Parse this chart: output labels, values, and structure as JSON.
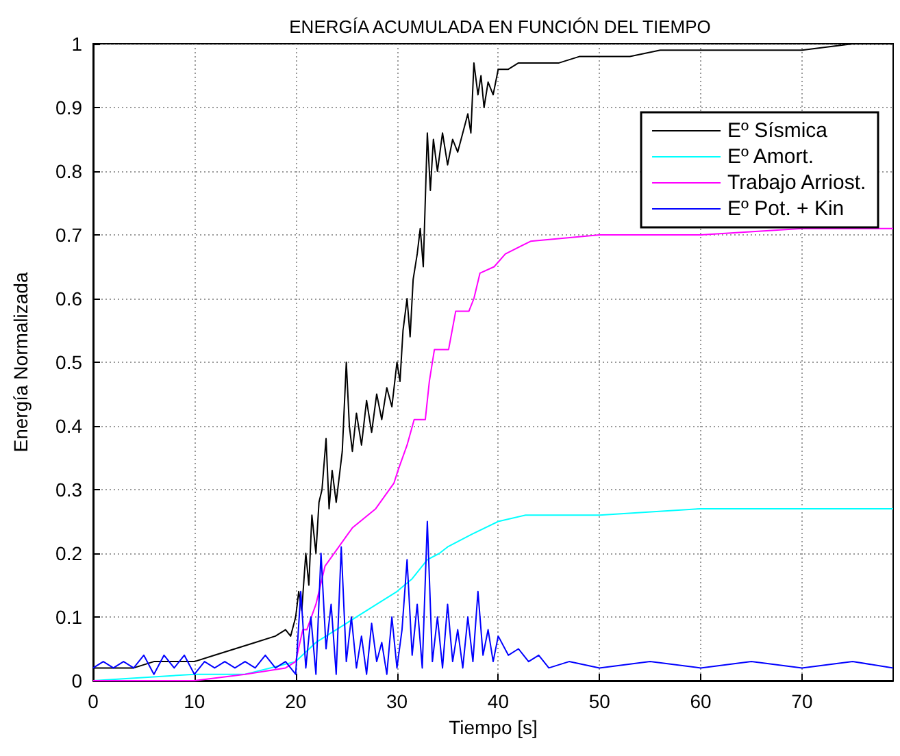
{
  "chart_data": {
    "type": "line",
    "title": "ENERGÍA ACUMULADA EN FUNCIÓN DEL TIEMPO",
    "xlabel": "Tiempo [s]",
    "ylabel": "Energía Normalizada",
    "xlim": [
      0,
      79
    ],
    "xticks": [
      0,
      10,
      20,
      30,
      40,
      50,
      60,
      70
    ],
    "ylim": [
      0,
      1
    ],
    "yticks": [
      0,
      0.1,
      0.2,
      0.3,
      0.4,
      0.5,
      0.6,
      0.7,
      0.8,
      0.9,
      1
    ],
    "grid": true,
    "legend": "top right",
    "marker": "none",
    "line_style": "solid",
    "series": [
      {
        "name": "Eº Sísmica",
        "color": "#000000",
        "x": [
          0,
          2,
          4,
          6,
          8,
          10,
          12,
          14,
          16,
          18,
          19,
          19.5,
          20,
          20.3,
          20.6,
          21,
          21.3,
          21.6,
          22,
          22.3,
          22.6,
          23,
          23.3,
          23.6,
          24,
          24.3,
          24.6,
          25,
          25.3,
          25.6,
          26,
          26.5,
          27,
          27.5,
          28,
          28.5,
          29,
          29.5,
          30,
          30.3,
          30.6,
          31,
          31.3,
          31.6,
          32,
          32.3,
          32.6,
          33,
          33.3,
          33.6,
          34,
          34.5,
          35,
          35.5,
          36,
          36.5,
          37,
          37.3,
          37.6,
          38,
          38.3,
          38.6,
          39,
          39.5,
          40,
          41,
          42,
          43,
          44,
          46,
          48,
          50,
          53,
          56,
          60,
          65,
          70,
          75,
          79
        ],
        "values": [
          0.02,
          0.02,
          0.02,
          0.03,
          0.03,
          0.03,
          0.04,
          0.05,
          0.06,
          0.07,
          0.08,
          0.07,
          0.1,
          0.14,
          0.11,
          0.2,
          0.15,
          0.26,
          0.2,
          0.28,
          0.3,
          0.38,
          0.27,
          0.33,
          0.28,
          0.32,
          0.36,
          0.5,
          0.4,
          0.36,
          0.42,
          0.37,
          0.44,
          0.39,
          0.45,
          0.41,
          0.46,
          0.43,
          0.5,
          0.47,
          0.55,
          0.6,
          0.54,
          0.63,
          0.67,
          0.71,
          0.65,
          0.86,
          0.77,
          0.85,
          0.8,
          0.86,
          0.81,
          0.85,
          0.83,
          0.86,
          0.89,
          0.86,
          0.97,
          0.92,
          0.95,
          0.9,
          0.94,
          0.92,
          0.96,
          0.96,
          0.97,
          0.97,
          0.97,
          0.97,
          0.98,
          0.98,
          0.98,
          0.99,
          0.99,
          0.99,
          0.99,
          1.0,
          1.0
        ]
      },
      {
        "name": "Eº Amort.",
        "color": "#00ffff",
        "x": [
          0,
          10,
          15,
          20,
          22,
          25,
          28,
          30,
          31.5,
          33,
          34.2,
          35,
          37.4,
          40,
          42.7,
          45,
          50,
          60,
          70,
          79
        ],
        "values": [
          0,
          0.01,
          0.01,
          0.03,
          0.06,
          0.09,
          0.12,
          0.14,
          0.16,
          0.19,
          0.2,
          0.21,
          0.23,
          0.25,
          0.26,
          0.26,
          0.26,
          0.27,
          0.27,
          0.27
        ]
      },
      {
        "name": "Trabajo Arriost.",
        "color": "#ff00ff",
        "x": [
          0,
          10,
          15,
          19,
          20,
          20.7,
          21.1,
          22,
          22.9,
          24.7,
          25.6,
          27.9,
          29.7,
          30.1,
          31,
          31.7,
          32.8,
          33.2,
          33.7,
          35.1,
          35.8,
          37.1,
          37.6,
          38.2,
          39.6,
          40.7,
          43.2,
          50,
          60,
          70,
          79
        ],
        "values": [
          0,
          0,
          0.01,
          0.02,
          0.03,
          0.08,
          0.08,
          0.12,
          0.18,
          0.22,
          0.24,
          0.27,
          0.31,
          0.33,
          0.37,
          0.41,
          0.41,
          0.47,
          0.52,
          0.52,
          0.58,
          0.58,
          0.6,
          0.64,
          0.65,
          0.67,
          0.69,
          0.7,
          0.7,
          0.71,
          0.71
        ]
      },
      {
        "name": "Eº Pot. + Kin",
        "color": "#0000ff",
        "x": [
          0,
          1,
          2,
          3,
          4,
          5,
          6,
          7,
          8,
          9,
          10,
          11,
          12,
          13,
          14,
          15,
          16,
          17,
          18,
          19,
          20,
          20.5,
          21,
          21.5,
          22,
          22.5,
          23,
          23.5,
          24,
          24.5,
          25,
          25.5,
          26,
          26.5,
          27,
          27.5,
          28,
          28.5,
          29,
          29.5,
          30,
          30.5,
          31,
          31.5,
          32,
          32.5,
          33,
          33.5,
          34,
          34.5,
          35,
          35.5,
          36,
          36.5,
          37,
          37.5,
          38,
          38.5,
          39,
          39.5,
          40,
          41,
          42,
          43,
          44,
          45,
          47,
          50,
          55,
          60,
          65,
          70,
          75,
          79
        ],
        "values": [
          0.02,
          0.03,
          0.02,
          0.03,
          0.02,
          0.04,
          0.01,
          0.04,
          0.02,
          0.04,
          0.01,
          0.03,
          0.02,
          0.03,
          0.02,
          0.03,
          0.02,
          0.04,
          0.02,
          0.03,
          0.01,
          0.14,
          0.02,
          0.1,
          0.01,
          0.2,
          0.05,
          0.12,
          0.01,
          0.21,
          0.03,
          0.1,
          0.02,
          0.07,
          0.01,
          0.09,
          0.03,
          0.06,
          0.01,
          0.1,
          0.02,
          0.08,
          0.19,
          0.04,
          0.12,
          0.02,
          0.25,
          0.03,
          0.1,
          0.02,
          0.12,
          0.03,
          0.08,
          0.02,
          0.1,
          0.03,
          0.14,
          0.04,
          0.08,
          0.03,
          0.07,
          0.04,
          0.05,
          0.03,
          0.04,
          0.02,
          0.03,
          0.02,
          0.03,
          0.02,
          0.03,
          0.02,
          0.03,
          0.02
        ]
      }
    ]
  }
}
